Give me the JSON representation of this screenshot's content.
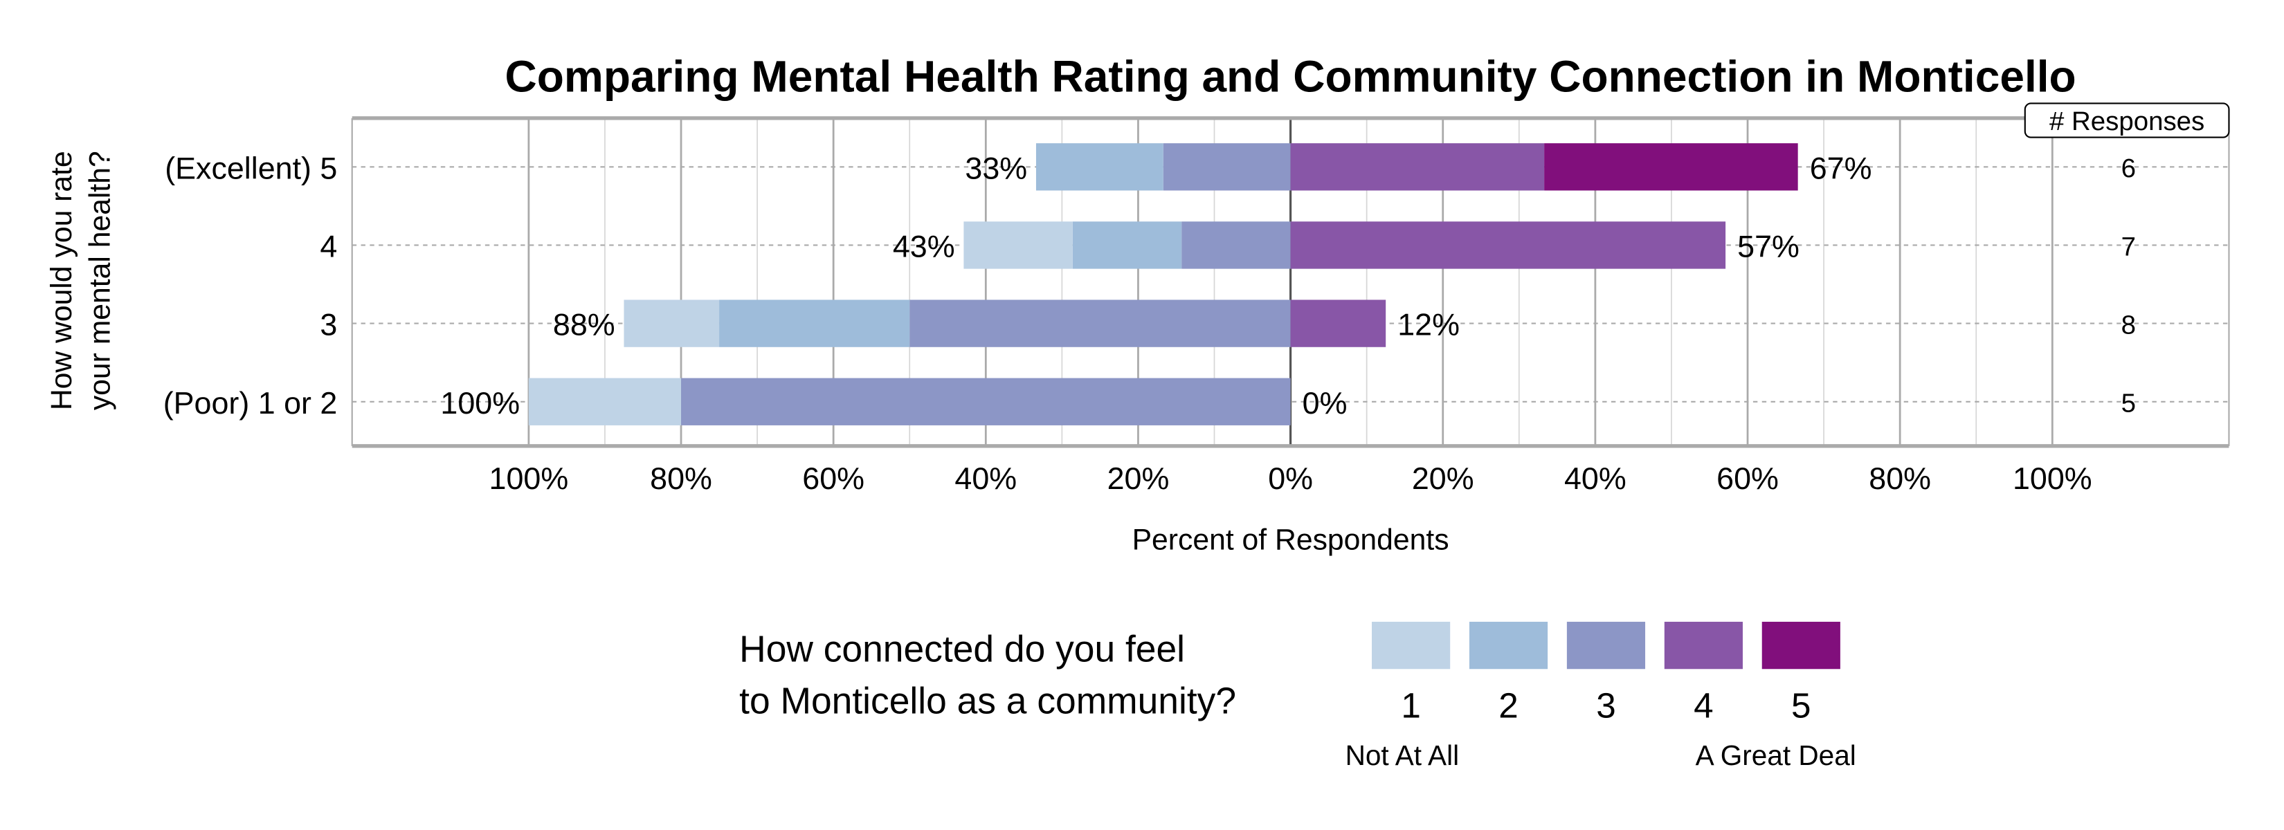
{
  "chart_data": {
    "type": "bar",
    "orientation": "horizontal",
    "stacking": "diverging",
    "title": "Comparing Mental Health Rating and Community Connection in Monticello",
    "xlabel": "Percent of Respondents",
    "ylabel": "How would you rate your mental health?",
    "xlim": [
      -100,
      100
    ],
    "x_ticks": [
      "100%",
      "80%",
      "60%",
      "40%",
      "20%",
      "0%",
      "20%",
      "40%",
      "60%",
      "80%",
      "100%"
    ],
    "grid": true,
    "categories": [
      "(Excellent) 5",
      "4",
      "3",
      "(Poor) 1 or 2"
    ],
    "series": [
      {
        "name": "1",
        "values": [
          0,
          14.3,
          12.5,
          20
        ],
        "color": "#bfd3e6",
        "side": "left"
      },
      {
        "name": "2",
        "values": [
          16.7,
          14.3,
          25,
          0
        ],
        "color": "#9ebcda",
        "side": "left"
      },
      {
        "name": "3",
        "values": [
          16.7,
          14.3,
          50,
          80
        ],
        "color": "#8c96c6",
        "side": "left"
      },
      {
        "name": "4",
        "values": [
          33.3,
          57.1,
          12.5,
          0
        ],
        "color": "#8856a7",
        "side": "right"
      },
      {
        "name": "5",
        "values": [
          33.3,
          0,
          0,
          0
        ],
        "color": "#810f7c",
        "side": "right"
      }
    ],
    "left_labels": [
      "33%",
      "43%",
      "88%",
      "100%"
    ],
    "right_labels": [
      "67%",
      "57%",
      "12%",
      "0%"
    ],
    "responses_header": "# Responses",
    "responses": [
      "6",
      "7",
      "8",
      "5"
    ],
    "legend": {
      "title_lines": [
        "How connected do you feel",
        "to Monticello as a community?"
      ],
      "items": [
        "1",
        "2",
        "3",
        "4",
        "5"
      ],
      "low_label": "Not At All",
      "high_label": "A Great Deal",
      "placement": "bottom"
    }
  }
}
